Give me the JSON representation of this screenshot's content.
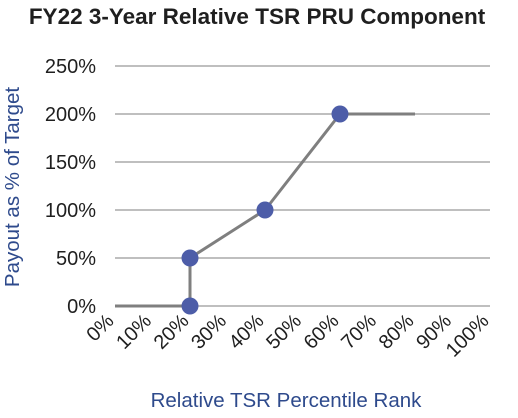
{
  "chart_data": {
    "type": "line",
    "title": "FY22 3-Year Relative TSR PRU Component",
    "xlabel": "Relative TSR Percentile Rank",
    "ylabel": "Payout as % of Target",
    "xlim": [
      0,
      100
    ],
    "ylim": [
      0,
      250
    ],
    "x_ticks": [
      "0%",
      "10%",
      "20%",
      "30%",
      "40%",
      "50%",
      "60%",
      "70%",
      "80%",
      "90%",
      "100%"
    ],
    "y_ticks": [
      "0%",
      "50%",
      "100%",
      "150%",
      "200%",
      "250%"
    ],
    "grid": true,
    "series": [
      {
        "line": [
          [
            0,
            0
          ],
          [
            20,
            0
          ],
          [
            20,
            50
          ],
          [
            40,
            100
          ],
          [
            60,
            200
          ],
          [
            80,
            200
          ]
        ],
        "markers": [
          [
            20,
            0
          ],
          [
            20,
            50
          ],
          [
            40,
            100
          ],
          [
            60,
            200
          ]
        ]
      }
    ],
    "colors": {
      "line": "#7f7f7f",
      "marker": "#4d5da8",
      "grid": "#bfbfbf",
      "axis_title": "#2e4a8c",
      "text": "#1f1f1f"
    }
  }
}
